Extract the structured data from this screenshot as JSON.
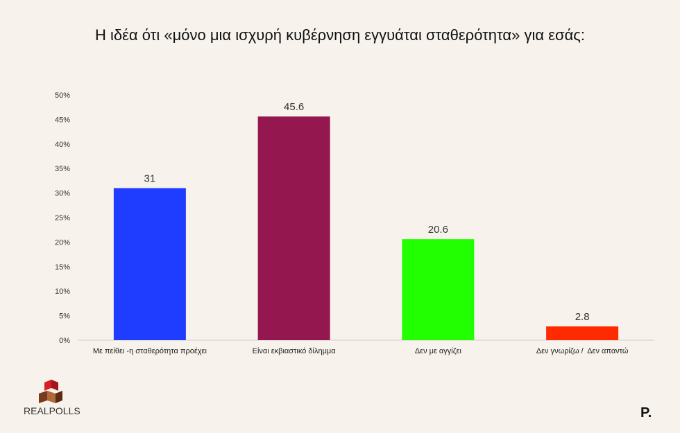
{
  "chart_data": {
    "type": "bar",
    "title": "Η ιδέα ότι «μόνο μια ισχυρή κυβέρνηση εγγυάται σταθερότητα» για εσάς:",
    "categories": [
      "Με πείθει -η σταθερότητα προέχει",
      "Είναι εκβιαστικό δίλημμα",
      "Δεν με αγγίζει",
      "Δεν γνωρίζω /  Δεν απαντώ"
    ],
    "values": [
      31,
      45.6,
      20.6,
      2.8
    ],
    "data_labels": [
      "31",
      "45.6",
      "20.6",
      "2.8"
    ],
    "colors": [
      "#1f3dff",
      "#95174f",
      "#22ff00",
      "#ff2a00"
    ],
    "ylim": [
      0,
      50
    ],
    "yticks": [
      0,
      5,
      10,
      15,
      20,
      25,
      30,
      35,
      40,
      45,
      50
    ],
    "ytick_labels": [
      "0%",
      "5%",
      "10%",
      "15%",
      "20%",
      "25%",
      "30%",
      "35%",
      "40%",
      "45%",
      "50%"
    ],
    "xlabel": "",
    "ylabel": "",
    "grid": false,
    "legend": "none"
  },
  "branding": {
    "left_logo": "REALPOLLS",
    "left_logo_icon": "cube-logo-icon",
    "right_logo": "P."
  },
  "colors": {
    "background": "#f7f3ec",
    "axis": "#cccccc",
    "logo_red": "#d61f26",
    "logo_brown": "#7a3b1d"
  }
}
